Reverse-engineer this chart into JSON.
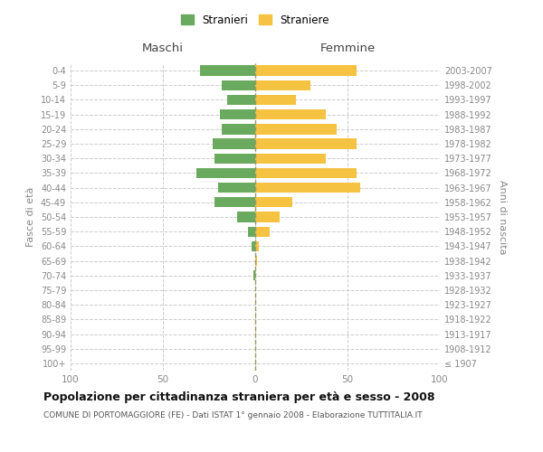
{
  "age_groups": [
    "100+",
    "95-99",
    "90-94",
    "85-89",
    "80-84",
    "75-79",
    "70-74",
    "65-69",
    "60-64",
    "55-59",
    "50-54",
    "45-49",
    "40-44",
    "35-39",
    "30-34",
    "25-29",
    "20-24",
    "15-19",
    "10-14",
    "5-9",
    "0-4"
  ],
  "birth_years": [
    "≤ 1907",
    "1908-1912",
    "1913-1917",
    "1918-1922",
    "1923-1927",
    "1928-1932",
    "1933-1937",
    "1938-1942",
    "1943-1947",
    "1948-1952",
    "1953-1957",
    "1958-1962",
    "1963-1967",
    "1968-1972",
    "1973-1977",
    "1978-1982",
    "1983-1987",
    "1988-1992",
    "1993-1997",
    "1998-2002",
    "2003-2007"
  ],
  "maschi": [
    0,
    0,
    0,
    0,
    0,
    0,
    1,
    0,
    2,
    4,
    10,
    22,
    20,
    32,
    22,
    23,
    18,
    19,
    15,
    18,
    30
  ],
  "femmine": [
    0,
    0,
    0,
    0,
    0,
    0,
    0,
    1,
    2,
    8,
    13,
    20,
    57,
    55,
    38,
    55,
    44,
    38,
    22,
    30,
    55
  ],
  "maschi_color": "#6aaa5e",
  "femmine_color": "#f5c242",
  "grid_color": "#cccccc",
  "axis_label_color": "#888888",
  "title": "Popolazione per cittadinanza straniera per età e sesso - 2008",
  "subtitle": "COMUNE DI PORTOMAGGIORE (FE) - Dati ISTAT 1° gennaio 2008 - Elaborazione TUTTITALIA.IT",
  "left_header": "Maschi",
  "right_header": "Femmine",
  "left_axis_label": "Fasce di età",
  "right_axis_label": "Anni di nascita",
  "xlim": 100,
  "legend_stranieri": "Stranieri",
  "legend_straniere": "Straniere",
  "bg_color": "#ffffff"
}
